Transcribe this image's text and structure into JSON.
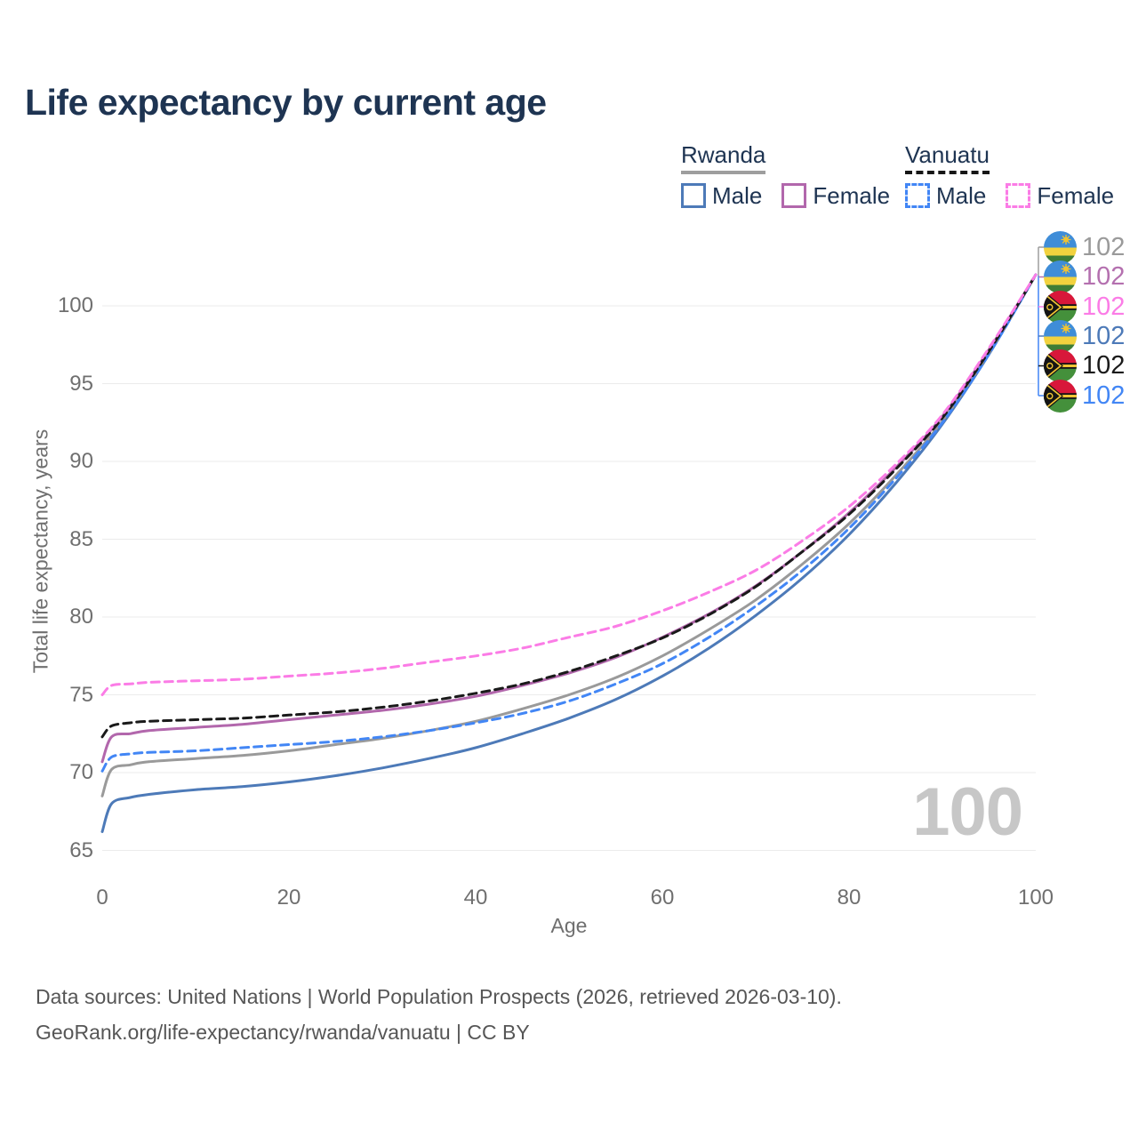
{
  "title": "Life expectancy by current age",
  "watermark": "100",
  "legend": {
    "groups": [
      {
        "country": "Rwanda",
        "line_style": "solid",
        "underline_color": "#9e9e9e",
        "items": [
          {
            "label": "Male",
            "color": "#4d7ab8"
          },
          {
            "label": "Female",
            "color": "#b267ac"
          }
        ]
      },
      {
        "country": "Vanuatu",
        "line_style": "dashed",
        "underline_color": "#161616",
        "items": [
          {
            "label": "Male",
            "color": "#4286f5"
          },
          {
            "label": "Female",
            "color": "#fb7ce6"
          }
        ]
      }
    ]
  },
  "right_labels": [
    {
      "flag": "rwanda",
      "value": "102",
      "color": "#9a9a9a",
      "series": "Rwanda total"
    },
    {
      "flag": "rwanda",
      "value": "102",
      "color": "#b470af",
      "series": "Rwanda Female"
    },
    {
      "flag": "vanuatu",
      "value": "102",
      "color": "#fb7ce6",
      "series": "Vanuatu Female"
    },
    {
      "flag": "rwanda",
      "value": "102",
      "color": "#4d7ab8",
      "series": "Rwanda Male"
    },
    {
      "flag": "vanuatu",
      "value": "102",
      "color": "#1a1a1a",
      "series": "Vanuatu total"
    },
    {
      "flag": "vanuatu",
      "value": "102",
      "color": "#4286f5",
      "series": "Vanuatu Male"
    }
  ],
  "footer": {
    "line1": "Data sources: United Nations | World Population Prospects (2026, retrieved 2026-03-10).",
    "line2": "GeoRank.org/life-expectancy/rwanda/vanuatu | CC BY"
  },
  "chart_data": {
    "type": "line",
    "title": "Life expectancy by current age",
    "xlabel": "Age",
    "ylabel": "Total life expectancy, years",
    "xlim": [
      0,
      100
    ],
    "ylim": [
      65,
      102
    ],
    "xticks": [
      0,
      20,
      40,
      60,
      80,
      100
    ],
    "yticks": [
      65,
      70,
      75,
      80,
      85,
      90,
      95,
      100
    ],
    "grid": "horizontal",
    "legend_position": "top-right",
    "x": [
      0,
      1,
      3,
      5,
      10,
      15,
      20,
      25,
      30,
      35,
      40,
      45,
      50,
      55,
      60,
      65,
      70,
      75,
      80,
      85,
      90,
      95,
      100
    ],
    "series": [
      {
        "name": "Rwanda Male",
        "country": "Rwanda",
        "sex": "male",
        "style": "solid",
        "color": "#4d7ab8",
        "values": [
          66.2,
          68.0,
          68.4,
          68.6,
          68.9,
          69.1,
          69.4,
          69.8,
          70.3,
          70.9,
          71.6,
          72.5,
          73.5,
          74.7,
          76.2,
          78.0,
          80.1,
          82.5,
          85.3,
          88.6,
          92.4,
          96.9,
          102
        ]
      },
      {
        "name": "Rwanda total",
        "country": "Rwanda",
        "sex": "both",
        "style": "solid",
        "color": "#9a9a9a",
        "values": [
          68.5,
          70.2,
          70.5,
          70.7,
          70.9,
          71.1,
          71.4,
          71.8,
          72.2,
          72.7,
          73.3,
          74.1,
          75.0,
          76.1,
          77.5,
          79.2,
          81.1,
          83.4,
          86.0,
          89.1,
          92.6,
          97.0,
          102
        ]
      },
      {
        "name": "Rwanda Female",
        "country": "Rwanda",
        "sex": "female",
        "style": "solid",
        "color": "#b267ac",
        "values": [
          70.7,
          72.3,
          72.5,
          72.7,
          72.9,
          73.1,
          73.4,
          73.7,
          74.0,
          74.4,
          74.9,
          75.6,
          76.4,
          77.4,
          78.7,
          80.2,
          82.0,
          84.2,
          86.7,
          89.6,
          92.9,
          97.2,
          102
        ]
      },
      {
        "name": "Vanuatu Male",
        "country": "Vanuatu",
        "sex": "male",
        "style": "dashed",
        "color": "#4286f5",
        "values": [
          70.1,
          71.0,
          71.2,
          71.3,
          71.4,
          71.6,
          71.8,
          72.0,
          72.3,
          72.7,
          73.2,
          73.8,
          74.6,
          75.7,
          77.0,
          78.7,
          80.7,
          83.0,
          85.7,
          88.9,
          92.5,
          96.9,
          102
        ]
      },
      {
        "name": "Vanuatu total",
        "country": "Vanuatu",
        "sex": "both",
        "style": "dashed",
        "color": "#1a1a1a",
        "values": [
          72.3,
          73.0,
          73.2,
          73.3,
          73.4,
          73.5,
          73.7,
          73.9,
          74.2,
          74.6,
          75.1,
          75.7,
          76.5,
          77.5,
          78.65,
          80.15,
          81.95,
          84.2,
          86.6,
          89.5,
          92.8,
          97.1,
          102
        ]
      },
      {
        "name": "Vanuatu Female",
        "country": "Vanuatu",
        "sex": "female",
        "style": "dashed",
        "color": "#fb7ce6",
        "values": [
          75.0,
          75.6,
          75.7,
          75.8,
          75.9,
          76.0,
          76.2,
          76.4,
          76.7,
          77.1,
          77.5,
          78.0,
          78.7,
          79.4,
          80.4,
          81.6,
          83.0,
          84.9,
          87.1,
          89.8,
          93.0,
          97.3,
          102
        ]
      }
    ]
  }
}
